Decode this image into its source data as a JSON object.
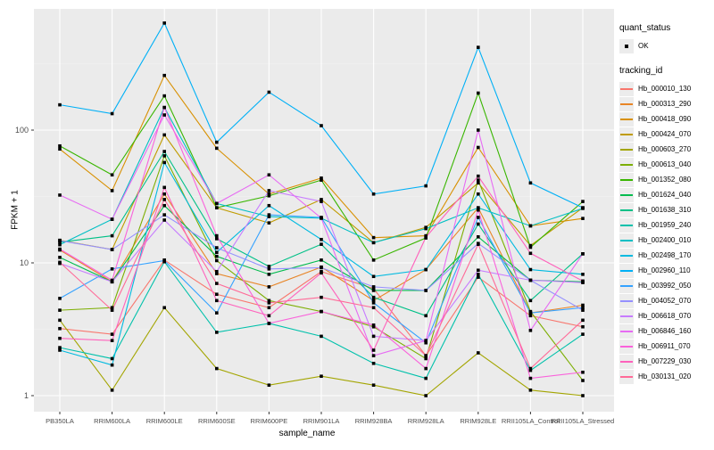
{
  "legend": {
    "quant_status_title": "quant_status",
    "quant_status_items": [
      {
        "label": "OK"
      }
    ],
    "tracking_id_title": "tracking_id"
  },
  "chart_data": {
    "type": "line",
    "title": "",
    "xlabel": "sample_name",
    "ylabel": "FPKM + 1",
    "y_scale": "log10",
    "y_ticks": [
      1,
      10,
      100
    ],
    "ylim": [
      0.7,
      900
    ],
    "grid": "white major and minor on gray panel",
    "legend_position": "right",
    "panel_bg": "#EBEBEB",
    "marker": "small black square (quant_status OK)",
    "categories": [
      "PB350LA",
      "RRIM600LA",
      "RRIM600LE",
      "RRIM600SE",
      "RRIM600PE",
      "RRIM901LA",
      "RRIM928BA",
      "RRIM928LA",
      "RRIM928LE",
      "RRII105LA_Control",
      "RRII105LA_Stressed"
    ],
    "series": [
      {
        "name": "Hb_000010_130",
        "color": "#F8766D",
        "values": [
          3.2,
          2.9,
          10.5,
          5.8,
          4.6,
          8.6,
          6.4,
          2.0,
          7.8,
          4.0,
          3.3
        ]
      },
      {
        "name": "Hb_000313_290",
        "color": "#E88526",
        "values": [
          12.5,
          7.2,
          33,
          8.3,
          6.6,
          9.3,
          5.2,
          8.9,
          26,
          4.2,
          4.8
        ]
      },
      {
        "name": "Hb_000418_090",
        "color": "#D89000",
        "values": [
          72,
          35,
          258,
          73,
          33,
          43.5,
          15.5,
          16,
          74,
          19,
          21.6
        ]
      },
      {
        "name": "Hb_000424_070",
        "color": "#C09B00",
        "values": [
          14.8,
          12.6,
          92,
          26,
          20,
          30,
          14.2,
          18.5,
          40,
          13.5,
          26
        ]
      },
      {
        "name": "Hb_000603_270",
        "color": "#A3A500",
        "values": [
          3.7,
          1.1,
          4.6,
          1.6,
          1.2,
          1.4,
          1.2,
          1.0,
          2.1,
          1.1,
          1.0
        ]
      },
      {
        "name": "Hb_000613_040",
        "color": "#7CAE00",
        "values": [
          4.4,
          4.6,
          64,
          10.4,
          5.2,
          4.3,
          3.3,
          1.9,
          42,
          4.3,
          1.3
        ]
      },
      {
        "name": "Hb_001352_080",
        "color": "#39B600",
        "values": [
          76,
          46,
          181,
          26,
          32,
          42,
          10.5,
          15.4,
          190,
          13.1,
          29
        ]
      },
      {
        "name": "Hb_001624_040",
        "color": "#00BB4E",
        "values": [
          11,
          7.2,
          27,
          11.2,
          8.2,
          10.5,
          6.2,
          6.2,
          15.7,
          7.4,
          7.2
        ]
      },
      {
        "name": "Hb_001638_310",
        "color": "#00C087",
        "values": [
          14.3,
          16,
          69,
          15.2,
          9.4,
          13.8,
          5.5,
          4.0,
          19.6,
          5.2,
          11.7
        ]
      },
      {
        "name": "Hb_001959_240",
        "color": "#00C1AB",
        "values": [
          2.3,
          1.9,
          10.2,
          3.0,
          3.5,
          2.8,
          1.75,
          1.35,
          8.2,
          1.55,
          2.9
        ]
      },
      {
        "name": "Hb_002400_010",
        "color": "#00BFC4",
        "values": [
          13.7,
          21.3,
          148,
          28,
          22.3,
          21.7,
          14.2,
          18.1,
          26,
          19,
          25.7
        ]
      },
      {
        "name": "Hb_002498_170",
        "color": "#00BAE0",
        "values": [
          2.2,
          1.7,
          57,
          12,
          27,
          15,
          7.9,
          8.9,
          33,
          8.9,
          8.2
        ]
      },
      {
        "name": "Hb_002960_110",
        "color": "#00B0F6",
        "values": [
          155,
          133,
          640,
          81,
          193,
          108,
          33,
          38,
          420,
          40,
          26
        ]
      },
      {
        "name": "Hb_003992_050",
        "color": "#35A2FF",
        "values": [
          5.4,
          9.0,
          10.4,
          4.2,
          23,
          22,
          5.0,
          2.5,
          22,
          4.2,
          4.6
        ]
      },
      {
        "name": "Hb_004052_070",
        "color": "#9590FF",
        "values": [
          14.7,
          12.6,
          23,
          13,
          9.0,
          9.2,
          6.6,
          6.2,
          14,
          7.4,
          4.4
        ]
      },
      {
        "name": "Hb_006618_070",
        "color": "#C77CFF",
        "values": [
          9.9,
          7.2,
          21,
          8.6,
          35,
          29,
          2.8,
          2.6,
          8.8,
          7.4,
          7.1
        ]
      },
      {
        "name": "Hb_006846_160",
        "color": "#E76BF3",
        "values": [
          32.4,
          21.3,
          130,
          28,
          46,
          21.7,
          2.0,
          2.6,
          100,
          3.1,
          11.7
        ]
      },
      {
        "name": "Hb_006911_070",
        "color": "#FA62DB",
        "values": [
          12.7,
          7.4,
          148,
          16,
          3.5,
          4.3,
          3.4,
          1.6,
          25,
          1.35,
          1.5
        ]
      },
      {
        "name": "Hb_007229_030",
        "color": "#FF62BC",
        "values": [
          2.7,
          2.6,
          37,
          5.2,
          4.0,
          8.4,
          2.2,
          15.6,
          45,
          11.8,
          7.3
        ]
      },
      {
        "name": "Hb_030131_020",
        "color": "#FF6A98",
        "values": [
          10.1,
          4.4,
          30,
          7.0,
          5.0,
          5.5,
          4.6,
          2.0,
          13.8,
          1.6,
          3.7
        ]
      }
    ]
  }
}
